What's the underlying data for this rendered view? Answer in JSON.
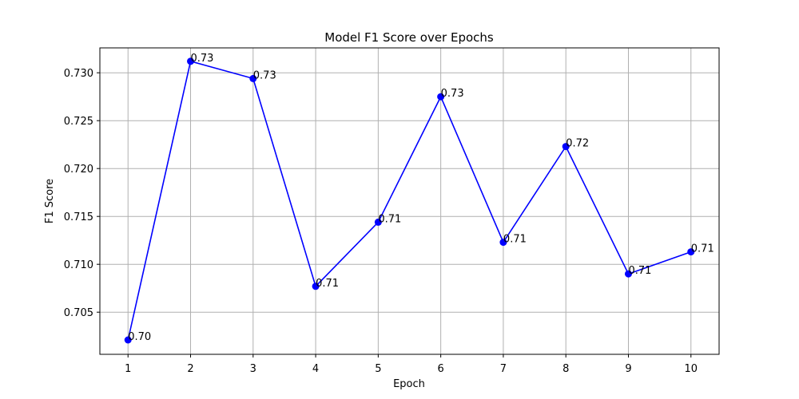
{
  "chart_data": {
    "type": "line",
    "title": "Model F1 Score over Epochs",
    "xlabel": "Epoch",
    "ylabel": "F1 Score",
    "x": [
      1,
      2,
      3,
      4,
      5,
      6,
      7,
      8,
      9,
      10
    ],
    "x_tick_labels": [
      "1",
      "2",
      "3",
      "4",
      "5",
      "6",
      "7",
      "8",
      "9",
      "10"
    ],
    "y_ticks": [
      0.705,
      0.71,
      0.715,
      0.72,
      0.725,
      0.73
    ],
    "y_tick_labels": [
      "0.705",
      "0.710",
      "0.715",
      "0.720",
      "0.725",
      "0.730"
    ],
    "xlim": [
      0.55,
      10.45
    ],
    "ylim": [
      0.7006,
      0.7326
    ],
    "grid": true,
    "series": [
      {
        "values": [
          0.7021,
          0.7312,
          0.7294,
          0.7077,
          0.7144,
          0.7275,
          0.7123,
          0.7223,
          0.709,
          0.7113
        ],
        "point_labels": [
          "0.70",
          "0.73",
          "0.73",
          "0.71",
          "0.71",
          "0.73",
          "0.71",
          "0.72",
          "0.71",
          "0.71"
        ],
        "color": "#0000ff",
        "marker": "circle"
      }
    ]
  }
}
